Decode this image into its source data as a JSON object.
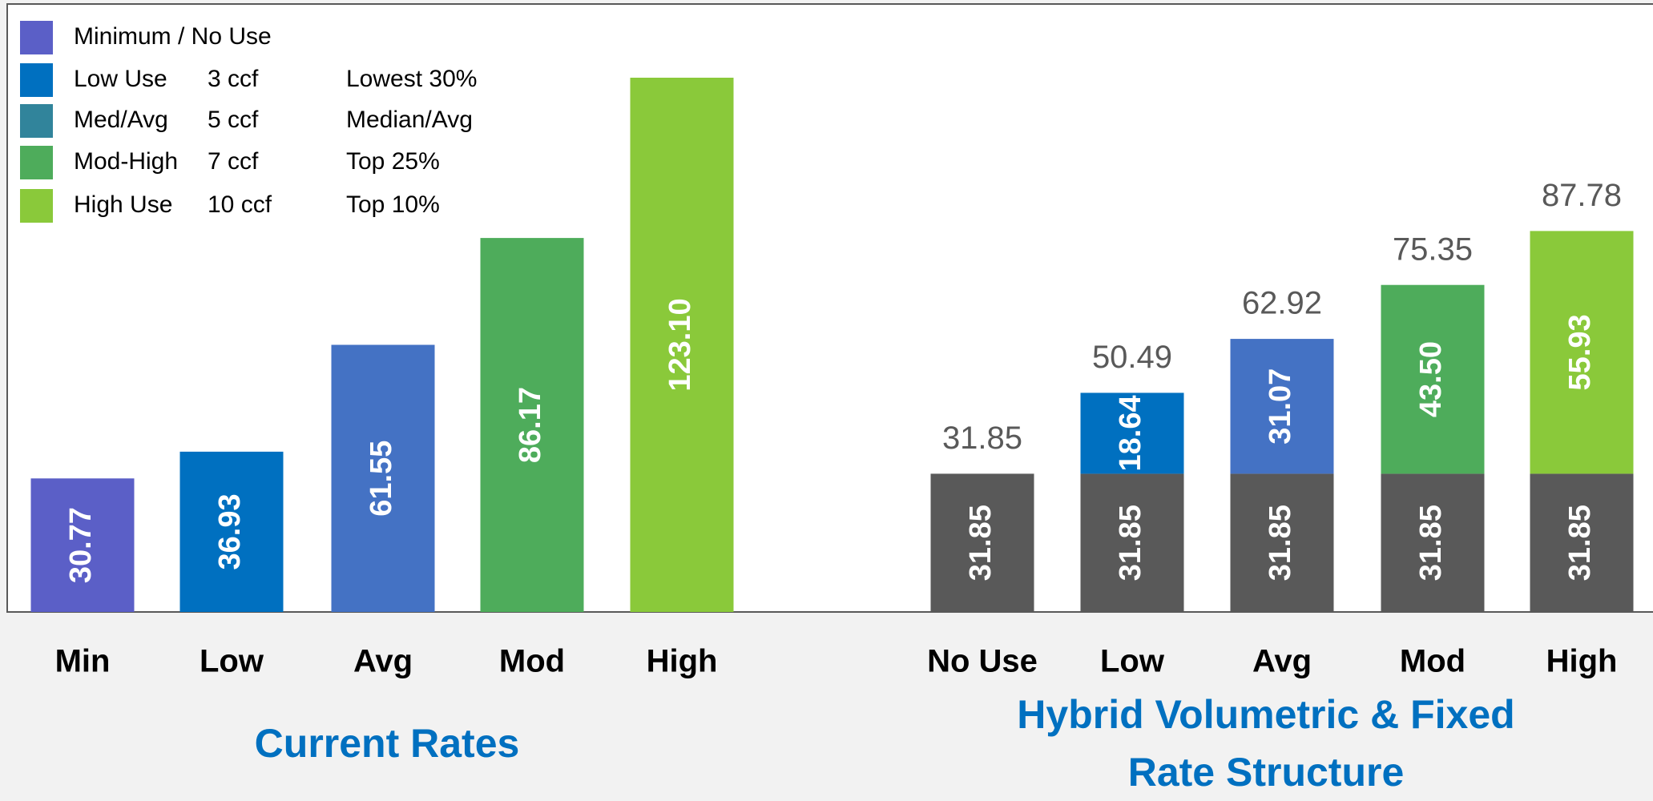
{
  "legend": [
    {
      "color": "#5b5fc7",
      "name": "Minimum / No Use"
    },
    {
      "color": "#0070c0",
      "name": "Low Use",
      "usage": "3 ccf",
      "percentile": "Lowest 30%"
    },
    {
      "color": "#31849b",
      "name": "Med/Avg",
      "usage": "5 ccf",
      "percentile": "Median/Avg"
    },
    {
      "color": "#4eac5b",
      "name": "Mod-High",
      "usage": "7 ccf",
      "percentile": "Top 25%"
    },
    {
      "color": "#8ac93a",
      "name": "High Use",
      "usage": "10 ccf",
      "percentile": "Top 10%"
    }
  ],
  "chart_data": [
    {
      "type": "bar",
      "xlabel": "Current Rates",
      "categories": [
        "Min",
        "Low",
        "Avg",
        "Mod",
        "High"
      ],
      "values": [
        30.77,
        36.93,
        61.55,
        86.17,
        123.1
      ],
      "value_labels": [
        "30.77",
        "36.93",
        "61.55",
        "86.17",
        "123.10"
      ],
      "colors": [
        "#5b5fc7",
        "#0070c0",
        "#4472c4",
        "#4eac5b",
        "#8ac93a"
      ]
    },
    {
      "type": "stacked_bar",
      "xlabel": "Hybrid Volumetric & Fixed Rate Structure",
      "categories": [
        "No Use",
        "Low",
        "Avg",
        "Mod",
        "High"
      ],
      "series": [
        {
          "color": "#595959",
          "values": [
            31.85,
            31.85,
            31.85,
            31.85,
            31.85
          ],
          "value_labels": [
            "31.85",
            "31.85",
            "31.85",
            "31.85",
            "31.85"
          ]
        },
        {
          "colors": [
            null,
            "#0070c0",
            "#4472c4",
            "#4eac5b",
            "#8ac93a"
          ],
          "values": [
            null,
            18.64,
            31.07,
            43.5,
            55.93
          ],
          "value_labels": [
            null,
            "18.64",
            "31.07",
            "43.50",
            "55.93"
          ]
        }
      ],
      "totals": [
        31.85,
        50.49,
        62.92,
        75.35,
        87.78
      ]
    }
  ]
}
